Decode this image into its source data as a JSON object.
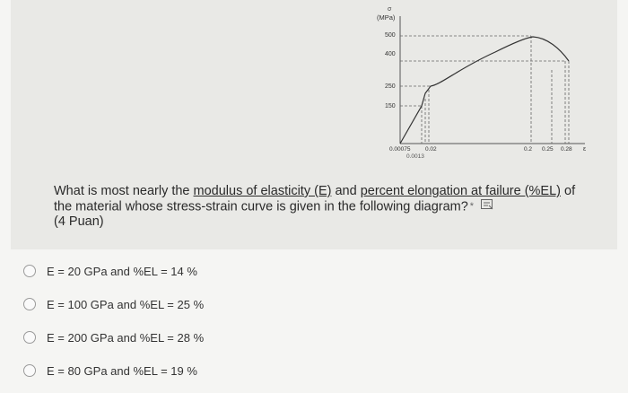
{
  "diagram": {
    "y_unit": "(MPa)",
    "y_symbol": "σ",
    "x_symbol": "ε",
    "y_ticks": [
      "500",
      "400",
      "250",
      "150"
    ],
    "x_ticks": [
      "0.00075",
      "0.02",
      "0.2",
      "0.25",
      "0.28"
    ],
    "x_tick_below": "0.0013"
  },
  "question": {
    "text_1": "What is most nearly the ",
    "link_1": "modulus of elasticity (E)",
    "text_2": " and ",
    "link_2": "percent elongation at failure (%EL)",
    "text_3": " of the material whose stress-strain curve is given in the following diagram?",
    "required_mark": "*",
    "points": "(4 Puan)"
  },
  "options": [
    {
      "label": "E = 20 GPa and %EL = 14 %"
    },
    {
      "label": "E = 100 GPa and %EL = 25 %"
    },
    {
      "label": "E = 200 GPa and %EL = 28 %"
    },
    {
      "label": "E = 80 GPa and %EL = 19 %"
    }
  ]
}
